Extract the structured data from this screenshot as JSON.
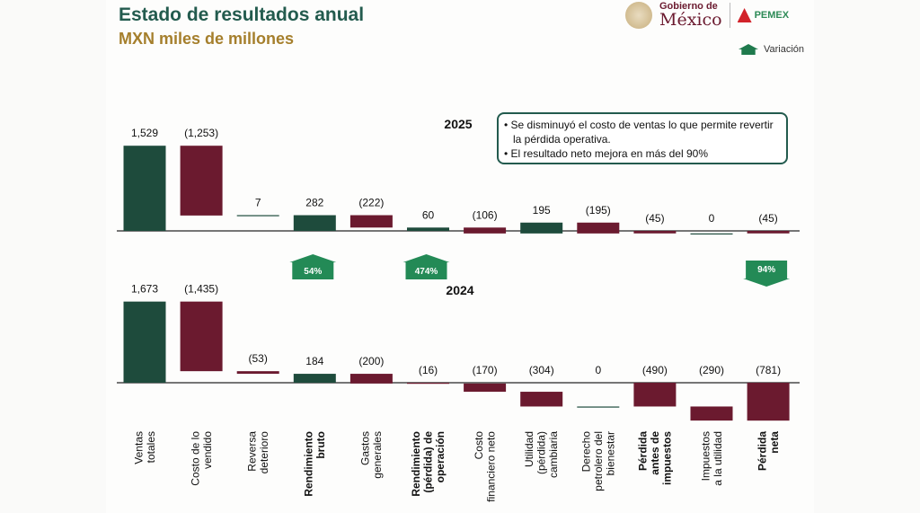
{
  "header": {
    "title": "Estado de resultados anual",
    "subtitle": "MXN miles de millones",
    "logo_gobierno_line1": "Gobierno de",
    "logo_gobierno_line2": "México",
    "logo_pemex": "PEMEX"
  },
  "legend": {
    "label": "Variación",
    "icon": "up-arrow-house-icon"
  },
  "note": {
    "bullets": [
      "• Se disminuyó el costo de ventas lo que permite revertir la pérdida operativa.",
      "• El resultado neto mejora en más del 90%"
    ]
  },
  "colors": {
    "positive": "#1e4b3c",
    "negative": "#6b1a2f",
    "variation": "#238a56",
    "title": "#235b4e",
    "subtitle": "#a57f2c"
  },
  "chart_data": {
    "type": "waterfall",
    "categories": [
      [
        "Ventas",
        "totales"
      ],
      [
        "Costo de lo",
        "vendido"
      ],
      [
        "Reversa",
        "deterioro"
      ],
      [
        "Rendimiento",
        "bruto"
      ],
      [
        "Gastos",
        "generales"
      ],
      [
        "Rendimiento",
        "(pérdida) de",
        "operación"
      ],
      [
        "Costo",
        "financiero neto"
      ],
      [
        "Utilidad",
        "(pérdida)",
        "cambiaria"
      ],
      [
        "Derecho",
        "petrolero del",
        "bienestar"
      ],
      [
        "Pérdida",
        "antes de",
        "impuestos"
      ],
      [
        "Impuestos",
        "a la utilidad"
      ],
      [
        "Pérdida",
        "neta"
      ]
    ],
    "bold_categories": [
      3,
      5,
      9,
      11
    ],
    "is_total": [
      true,
      false,
      false,
      true,
      false,
      true,
      false,
      false,
      false,
      true,
      false,
      true
    ],
    "series": [
      {
        "name": "2025",
        "values": [
          1529,
          -1253,
          7,
          282,
          -222,
          60,
          -106,
          195,
          -195,
          -45,
          0,
          -45
        ],
        "labels": [
          "1,529",
          "(1,253)",
          "7",
          "282",
          "(222)",
          "60",
          "(106)",
          "195",
          "(195)",
          "(45)",
          "0",
          "(45)"
        ]
      },
      {
        "name": "2024",
        "values": [
          1673,
          -1435,
          -53,
          184,
          -200,
          -16,
          -170,
          -304,
          0,
          -490,
          -290,
          -781
        ],
        "labels": [
          "1,673",
          "(1,435)",
          "(53)",
          "184",
          "(200)",
          "(16)",
          "(170)",
          "(304)",
          "0",
          "(490)",
          "(290)",
          "(781)"
        ]
      }
    ],
    "variations": [
      {
        "category_index": 3,
        "label": "54%",
        "direction": "up"
      },
      {
        "category_index": 5,
        "label": "474%",
        "direction": "up"
      },
      {
        "category_index": 11,
        "label": "94%",
        "direction": "down"
      }
    ]
  }
}
